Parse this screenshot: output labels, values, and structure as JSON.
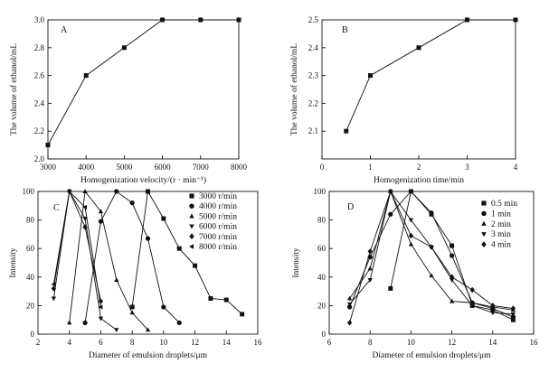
{
  "chart_data": [
    {
      "id": "A",
      "type": "line",
      "panel_label": "A",
      "xlabel": "Homogenization velocity/(r · min⁻¹)",
      "ylabel": "The volume of ethanol/mL",
      "xlim": [
        3000,
        8000
      ],
      "ylim": [
        2.0,
        3.0
      ],
      "xticks": [
        3000,
        4000,
        5000,
        6000,
        7000,
        8000
      ],
      "yticks": [
        2.0,
        2.2,
        2.4,
        2.6,
        2.8,
        3.0
      ],
      "ytick_format": 1,
      "series": [
        {
          "marker": "square",
          "x": [
            3000,
            4000,
            5000,
            6000,
            7000,
            8000
          ],
          "y": [
            2.1,
            2.6,
            2.8,
            3.0,
            3.0,
            3.0
          ]
        }
      ]
    },
    {
      "id": "B",
      "type": "line",
      "panel_label": "B",
      "xlabel": "Homogenization time/min",
      "ylabel": "The volume of ethanol/mL",
      "xlim": [
        0,
        4
      ],
      "ylim": [
        2.0,
        2.5
      ],
      "xticks": [
        0,
        1,
        2,
        3,
        4
      ],
      "yticks": [
        2.1,
        2.2,
        2.3,
        2.4,
        2.5
      ],
      "ytick_format": 1,
      "series": [
        {
          "marker": "square",
          "x": [
            0.5,
            1,
            2,
            3,
            4
          ],
          "y": [
            2.1,
            2.3,
            2.4,
            2.5,
            2.5
          ]
        }
      ]
    },
    {
      "id": "C",
      "type": "line",
      "panel_label": "C",
      "xlabel": "Diameter of emulsion droplets/μm",
      "ylabel": "Intensity",
      "xlim": [
        2,
        16
      ],
      "ylim": [
        0,
        100
      ],
      "xticks": [
        2,
        4,
        6,
        8,
        10,
        12,
        14,
        16
      ],
      "yticks": [
        0,
        20,
        40,
        60,
        80,
        100
      ],
      "ytick_format": 0,
      "legend": "top-right",
      "series": [
        {
          "name": "3000 r/min",
          "marker": "square",
          "x": [
            8,
            9,
            10,
            11,
            12,
            13,
            14,
            15
          ],
          "y": [
            19,
            100,
            81,
            60,
            48,
            25,
            24,
            14
          ]
        },
        {
          "name": "4000 r/min",
          "marker": "circle",
          "x": [
            5,
            6,
            7,
            8,
            9,
            10,
            11
          ],
          "y": [
            8,
            79,
            100,
            92,
            67,
            19,
            8
          ]
        },
        {
          "name": "5000 r/min",
          "marker": "triangle-up",
          "x": [
            4,
            5,
            6,
            7,
            8,
            9
          ],
          "y": [
            8,
            100,
            86,
            38,
            15,
            3
          ]
        },
        {
          "name": "6000 r/min",
          "marker": "triangle-down",
          "x": [
            3,
            4,
            5,
            6,
            7
          ],
          "y": [
            25,
            100,
            81,
            11,
            3
          ]
        },
        {
          "name": "7000 r/min",
          "marker": "diamond",
          "x": [
            3,
            4,
            5,
            6
          ],
          "y": [
            32,
            100,
            75,
            23
          ]
        },
        {
          "name": "8000 r/min",
          "marker": "left-triangle",
          "x": [
            3,
            4,
            5,
            6
          ],
          "y": [
            35,
            100,
            89,
            19
          ]
        }
      ]
    },
    {
      "id": "D",
      "type": "line",
      "panel_label": "D",
      "xlabel": "Diameter of emulsion droplets/μm",
      "ylabel": "Intensity",
      "xlim": [
        6,
        16
      ],
      "ylim": [
        0,
        100
      ],
      "xticks": [
        6,
        8,
        10,
        12,
        14,
        16
      ],
      "yticks": [
        0,
        20,
        40,
        60,
        80,
        100
      ],
      "ytick_format": 0,
      "legend": "top-right",
      "series": [
        {
          "name": "0.5 min",
          "marker": "square",
          "x": [
            9,
            10,
            11,
            12,
            13,
            14,
            15
          ],
          "y": [
            32,
            100,
            84,
            62,
            20,
            17,
            10
          ]
        },
        {
          "name": "1 min",
          "marker": "circle",
          "x": [
            7,
            8,
            9,
            10,
            11,
            12,
            13,
            14,
            15
          ],
          "y": [
            19,
            54,
            84,
            100,
            85,
            55,
            22,
            18,
            12
          ]
        },
        {
          "name": "2 min",
          "marker": "triangle-up",
          "x": [
            7,
            8,
            9,
            10,
            11,
            12,
            13,
            14,
            15
          ],
          "y": [
            25,
            46,
            100,
            63,
            41,
            23,
            22,
            19,
            17
          ]
        },
        {
          "name": "3 min",
          "marker": "triangle-down",
          "x": [
            7,
            8,
            9,
            10,
            11,
            12,
            13,
            14,
            15
          ],
          "y": [
            21,
            38,
            100,
            80,
            61,
            38,
            20,
            15,
            14
          ]
        },
        {
          "name": "4 min",
          "marker": "diamond",
          "x": [
            7,
            8,
            9,
            10,
            11,
            12,
            13,
            14,
            15
          ],
          "y": [
            8,
            58,
            100,
            69,
            61,
            40,
            31,
            20,
            18
          ]
        }
      ]
    }
  ]
}
